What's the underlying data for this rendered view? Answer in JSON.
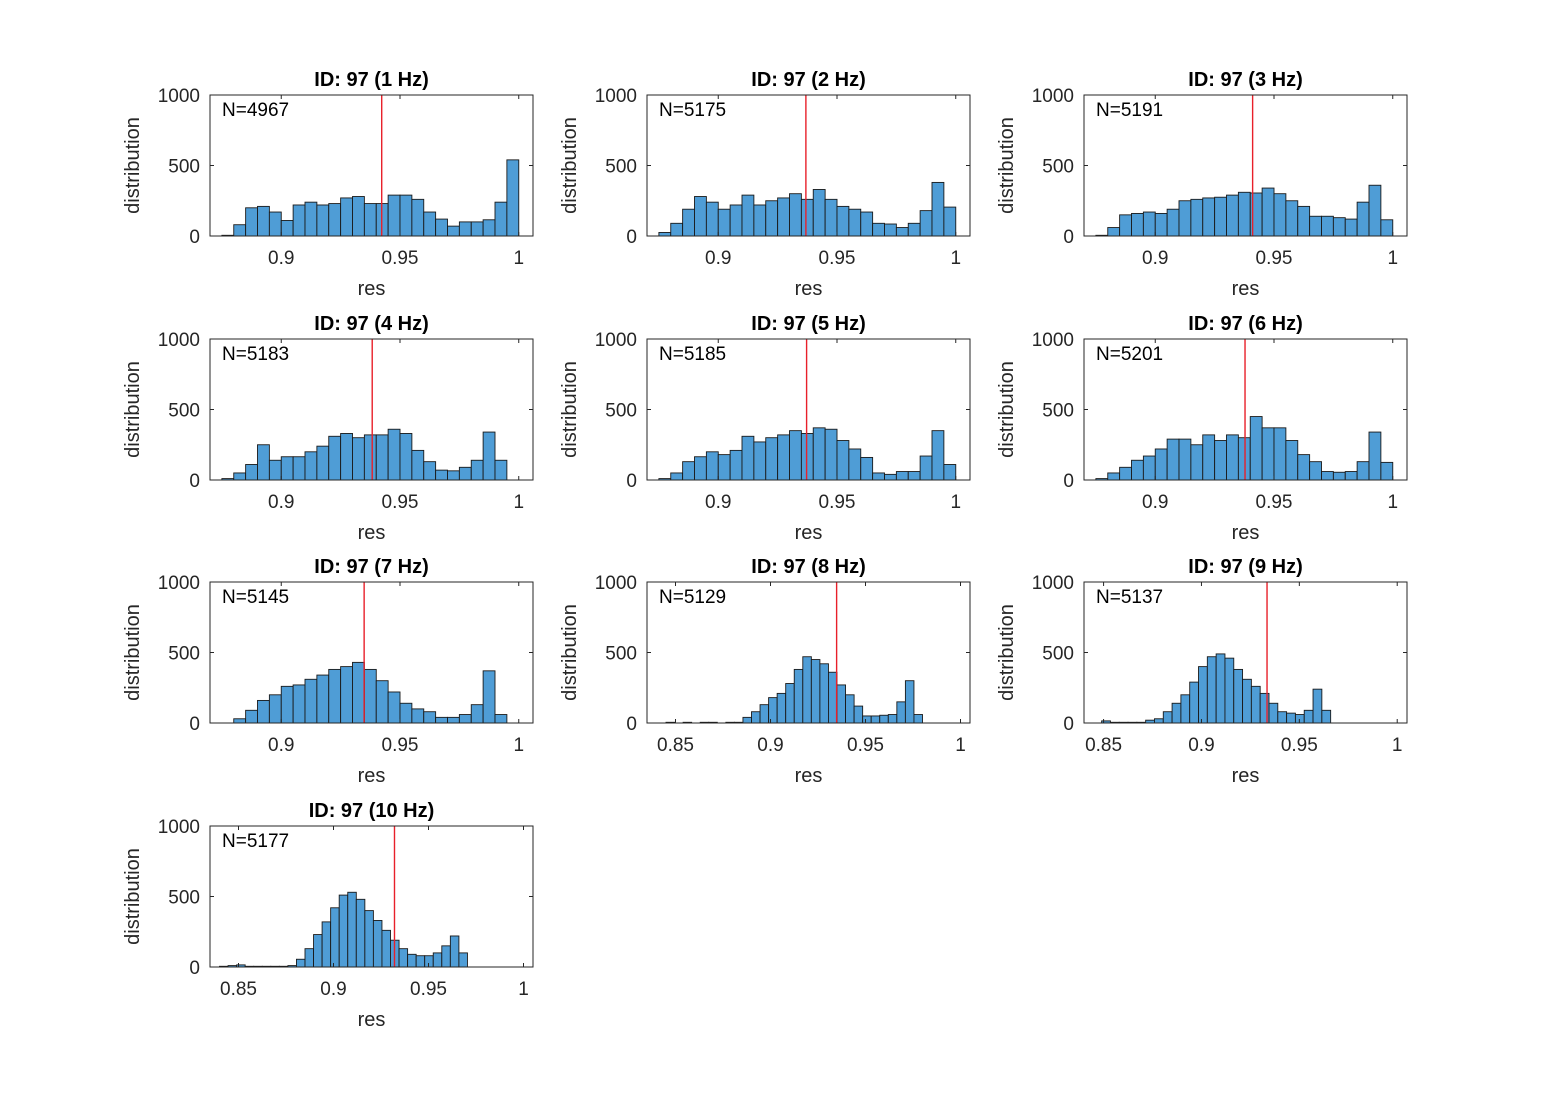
{
  "colors": {
    "bar": "#4f9dd6",
    "bar_edge": "#1a1a1a",
    "mean_line": "#e8202a"
  },
  "chart_data": [
    {
      "type": "bar",
      "title": "ID: 97 (1 Hz)",
      "xlabel": "res",
      "ylabel": "distribution",
      "annotation": "N=4967",
      "xlim": [
        0.87,
        1.006
      ],
      "ylim": [
        0,
        1000
      ],
      "xticks": [
        "0.9",
        "0.95",
        "1"
      ],
      "yticks": [
        "0",
        "500",
        "1000"
      ],
      "bin_start": 0.875,
      "bin_width": 0.005,
      "mean_line_x": 0.9423,
      "values": [
        5,
        80,
        200,
        210,
        170,
        110,
        220,
        240,
        220,
        230,
        270,
        280,
        230,
        230,
        290,
        290,
        260,
        170,
        120,
        70,
        100,
        100,
        115,
        240,
        540
      ]
    },
    {
      "type": "bar",
      "title": "ID: 97 (2 Hz)",
      "xlabel": "res",
      "ylabel": "distribution",
      "annotation": "N=5175",
      "xlim": [
        0.87,
        1.006
      ],
      "ylim": [
        0,
        1000
      ],
      "xticks": [
        "0.9",
        "0.95",
        "1"
      ],
      "yticks": [
        "0",
        "500",
        "1000"
      ],
      "bin_start": 0.875,
      "bin_width": 0.005,
      "mean_line_x": 0.9369,
      "values": [
        25,
        90,
        190,
        280,
        240,
        190,
        220,
        290,
        220,
        250,
        270,
        300,
        260,
        330,
        260,
        210,
        190,
        170,
        90,
        85,
        60,
        90,
        180,
        380,
        205
      ]
    },
    {
      "type": "bar",
      "title": "ID: 97 (3 Hz)",
      "xlabel": "res",
      "ylabel": "distribution",
      "annotation": "N=5191",
      "xlim": [
        0.87,
        1.006
      ],
      "ylim": [
        0,
        1000
      ],
      "xticks": [
        "0.9",
        "0.95",
        "1"
      ],
      "yticks": [
        "0",
        "500",
        "1000"
      ],
      "bin_start": 0.875,
      "bin_width": 0.005,
      "mean_line_x": 0.941,
      "values": [
        5,
        60,
        150,
        160,
        170,
        160,
        190,
        250,
        260,
        270,
        275,
        290,
        310,
        305,
        340,
        300,
        250,
        210,
        140,
        140,
        130,
        120,
        240,
        360,
        115
      ]
    },
    {
      "type": "bar",
      "title": "ID: 97 (4 Hz)",
      "xlabel": "res",
      "ylabel": "distribution",
      "annotation": "N=5183",
      "xlim": [
        0.87,
        1.006
      ],
      "ylim": [
        0,
        1000
      ],
      "xticks": [
        "0.9",
        "0.95",
        "1"
      ],
      "yticks": [
        "0",
        "500",
        "1000"
      ],
      "bin_start": 0.875,
      "bin_width": 0.005,
      "mean_line_x": 0.9383,
      "values": [
        10,
        50,
        110,
        250,
        140,
        165,
        165,
        200,
        240,
        310,
        330,
        300,
        320,
        320,
        360,
        330,
        210,
        130,
        70,
        65,
        90,
        140,
        340,
        140
      ]
    },
    {
      "type": "bar",
      "title": "ID: 97 (5 Hz)",
      "xlabel": "res",
      "ylabel": "distribution",
      "annotation": "N=5185",
      "xlim": [
        0.87,
        1.006
      ],
      "ylim": [
        0,
        1000
      ],
      "xticks": [
        "0.9",
        "0.95",
        "1"
      ],
      "yticks": [
        "0",
        "500",
        "1000"
      ],
      "bin_start": 0.875,
      "bin_width": 0.005,
      "mean_line_x": 0.9372,
      "values": [
        10,
        50,
        130,
        165,
        200,
        180,
        210,
        310,
        270,
        300,
        320,
        350,
        330,
        370,
        360,
        280,
        220,
        160,
        50,
        40,
        60,
        60,
        170,
        350,
        110
      ]
    },
    {
      "type": "bar",
      "title": "ID: 97 (6 Hz)",
      "xlabel": "res",
      "ylabel": "distribution",
      "annotation": "N=5201",
      "xlim": [
        0.87,
        1.006
      ],
      "ylim": [
        0,
        1000
      ],
      "xticks": [
        "0.9",
        "0.95",
        "1"
      ],
      "yticks": [
        "0",
        "500",
        "1000"
      ],
      "bin_start": 0.875,
      "bin_width": 0.005,
      "mean_line_x": 0.9378,
      "values": [
        10,
        50,
        90,
        140,
        170,
        220,
        290,
        290,
        250,
        320,
        280,
        320,
        300,
        450,
        370,
        370,
        280,
        180,
        130,
        60,
        55,
        60,
        130,
        340,
        125
      ]
    },
    {
      "type": "bar",
      "title": "ID: 97 (7 Hz)",
      "xlabel": "res",
      "ylabel": "distribution",
      "annotation": "N=5145",
      "xlim": [
        0.87,
        1.006
      ],
      "ylim": [
        0,
        1000
      ],
      "xticks": [
        "0.9",
        "0.95",
        "1"
      ],
      "yticks": [
        "0",
        "500",
        "1000"
      ],
      "bin_start": 0.88,
      "bin_width": 0.005,
      "mean_line_x": 0.9349,
      "values": [
        30,
        90,
        160,
        200,
        260,
        270,
        310,
        340,
        380,
        400,
        430,
        380,
        300,
        220,
        140,
        100,
        80,
        40,
        40,
        60,
        130,
        370,
        60
      ]
    },
    {
      "type": "bar",
      "title": "ID: 97 (8 Hz)",
      "xlabel": "res",
      "ylabel": "distribution",
      "annotation": "N=5129",
      "xlim": [
        0.835,
        1.005
      ],
      "ylim": [
        0,
        1000
      ],
      "xticks": [
        "0.85",
        "0.9",
        "0.95",
        "1"
      ],
      "yticks": [
        "0",
        "500",
        "1000"
      ],
      "bin_start": 0.845,
      "bin_width": 0.0045,
      "mean_line_x": 0.9348,
      "values": [
        5,
        0,
        5,
        0,
        5,
        5,
        0,
        5,
        5,
        40,
        80,
        130,
        180,
        210,
        280,
        380,
        470,
        450,
        420,
        360,
        270,
        200,
        120,
        50,
        50,
        55,
        60,
        150,
        300,
        60
      ]
    },
    {
      "type": "bar",
      "title": "ID: 97 (9 Hz)",
      "xlabel": "res",
      "ylabel": "distribution",
      "annotation": "N=5137",
      "xlim": [
        0.84,
        1.005
      ],
      "ylim": [
        0,
        1000
      ],
      "xticks": [
        "0.85",
        "0.9",
        "0.95",
        "1"
      ],
      "yticks": [
        "0",
        "500",
        "1000"
      ],
      "bin_start": 0.849,
      "bin_width": 0.0045,
      "mean_line_x": 0.9335,
      "values": [
        15,
        5,
        5,
        5,
        5,
        20,
        30,
        80,
        140,
        200,
        290,
        400,
        470,
        490,
        460,
        380,
        310,
        260,
        210,
        140,
        80,
        70,
        60,
        90,
        240,
        90
      ]
    },
    {
      "type": "bar",
      "title": "ID: 97 (10 Hz)",
      "xlabel": "res",
      "ylabel": "distribution",
      "annotation": "N=5177",
      "xlim": [
        0.835,
        1.005
      ],
      "ylim": [
        0,
        1000
      ],
      "xticks": [
        "0.85",
        "0.9",
        "0.95",
        "1"
      ],
      "yticks": [
        "0",
        "500",
        "1000"
      ],
      "bin_start": 0.84,
      "bin_width": 0.0045,
      "mean_line_x": 0.9321,
      "values": [
        5,
        10,
        15,
        5,
        5,
        5,
        5,
        5,
        10,
        55,
        130,
        230,
        320,
        420,
        510,
        530,
        480,
        400,
        330,
        260,
        190,
        130,
        90,
        80,
        80,
        100,
        150,
        220,
        100
      ]
    }
  ]
}
